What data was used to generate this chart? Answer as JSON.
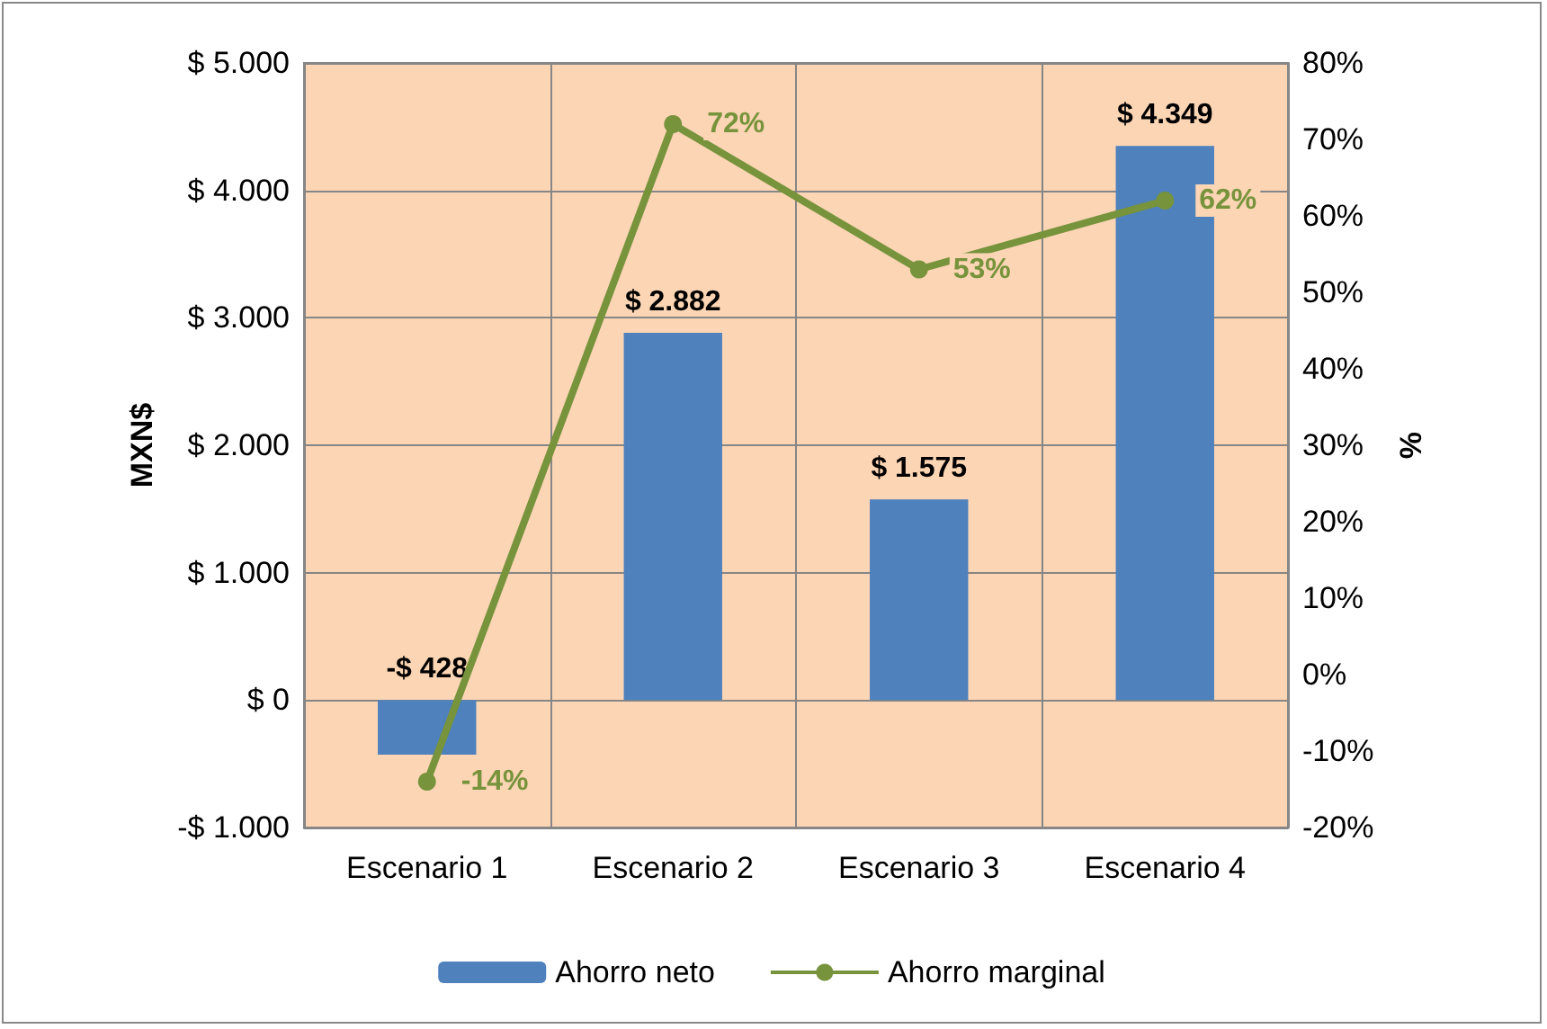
{
  "chart_data": {
    "type": "bar",
    "categories": [
      "Escenario 1",
      "Escenario 2",
      "Escenario 3",
      "Escenario 4"
    ],
    "series": [
      {
        "name": "Ahorro neto",
        "color": "#4f81bd",
        "values": [
          -428,
          2882,
          1575,
          4349
        ],
        "value_labels": [
          "-$ 428",
          "$ 2.882",
          "$ 1.575",
          "$ 4.349"
        ]
      },
      {
        "name": "Ahorro marginal",
        "type": "line",
        "axis": "y2",
        "color": "#77933c",
        "marker": "circle",
        "values": [
          -14,
          72,
          53,
          62
        ],
        "value_labels": [
          "-14%",
          "72%",
          "53%",
          "62%"
        ]
      }
    ],
    "ylabel": "MXN$",
    "y2label": "%",
    "ylim": [
      -1000,
      5000
    ],
    "yticks": [
      {
        "value": -1000,
        "label": "-$ 1.000"
      },
      {
        "value": 0,
        "label": "$ 0"
      },
      {
        "value": 1000,
        "label": "$ 1.000"
      },
      {
        "value": 2000,
        "label": "$ 2.000"
      },
      {
        "value": 3000,
        "label": "$ 3.000"
      },
      {
        "value": 4000,
        "label": "$ 4.000"
      },
      {
        "value": 5000,
        "label": "$ 5.000"
      }
    ],
    "y2lim": [
      -20,
      80
    ],
    "y2ticks": [
      {
        "value": -20,
        "label": "-20%"
      },
      {
        "value": -10,
        "label": "-10%"
      },
      {
        "value": 0,
        "label": "0%"
      },
      {
        "value": 10,
        "label": "10%"
      },
      {
        "value": 20,
        "label": "20%"
      },
      {
        "value": 30,
        "label": "30%"
      },
      {
        "value": 40,
        "label": "40%"
      },
      {
        "value": 50,
        "label": "50%"
      },
      {
        "value": 60,
        "label": "60%"
      },
      {
        "value": 70,
        "label": "70%"
      },
      {
        "value": 80,
        "label": "80%"
      }
    ],
    "grid": true,
    "legend": "bottom"
  }
}
